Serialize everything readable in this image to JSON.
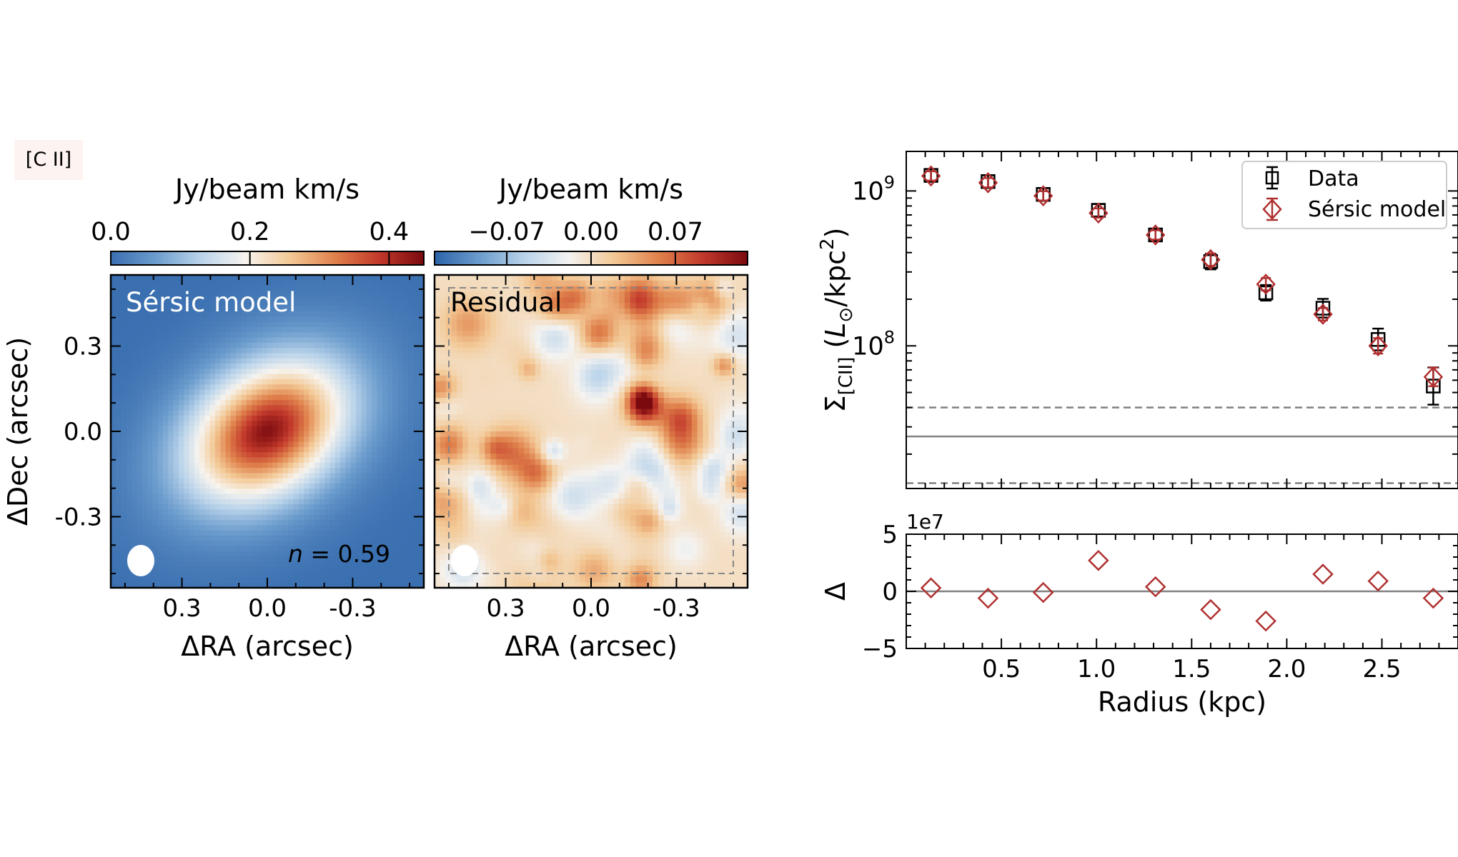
{
  "tag": "[C II]",
  "chart_data": [
    {
      "type": "heatmap",
      "panel_label": "Sérsic model",
      "annotation": "n = 0.59",
      "annotation_var": "n",
      "annotation_rest": " = 0.59",
      "colorbar": {
        "label": "Jy/beam km/s",
        "ticks": [
          {
            "value": 0.0,
            "label": "0.0"
          },
          {
            "value": 0.2,
            "label": "0.2"
          },
          {
            "value": 0.4,
            "label": "0.4"
          }
        ],
        "range": [
          0.0,
          0.45
        ],
        "colormap": [
          "#3a6fb0",
          "#6b9ccd",
          "#b9d3ea",
          "#f7f4ef",
          "#f3c996",
          "#e0824c",
          "#c2392b",
          "#7a0a0f"
        ]
      },
      "xlabel": "ΔRA (arcsec)",
      "ylabel": "ΔDec (arcsec)",
      "x_ticks": [
        {
          "value": 0.3,
          "label": "0.3"
        },
        {
          "value": 0.0,
          "label": "0.0"
        },
        {
          "value": -0.3,
          "label": "-0.3"
        }
      ],
      "y_ticks": [
        {
          "value": 0.3,
          "label": "0.3"
        },
        {
          "value": 0.0,
          "label": "0.0"
        },
        {
          "value": -0.3,
          "label": "-0.3"
        }
      ],
      "xlim": [
        0.55,
        -0.55
      ],
      "ylim": [
        -0.55,
        0.55
      ],
      "model": {
        "peak": 0.44,
        "center": [
          0.0,
          0.0
        ],
        "semi_major": 0.24,
        "semi_minor": 0.17,
        "pa_deg": 35,
        "sersic_n": 0.59
      }
    },
    {
      "type": "heatmap",
      "panel_label": "Residual",
      "colorbar": {
        "label": "Jy/beam km/s",
        "ticks": [
          {
            "value": -0.07,
            "label": "−0.07"
          },
          {
            "value": 0.0,
            "label": "0.00"
          },
          {
            "value": 0.07,
            "label": "0.07"
          }
        ],
        "range": [
          -0.13,
          0.13
        ],
        "colormap": [
          "#2c64a8",
          "#6b9ccd",
          "#b9d3ea",
          "#f4f3f1",
          "#f3c996",
          "#e0824c",
          "#c2392b",
          "#7a0a0f"
        ]
      },
      "xlabel": "ΔRA (arcsec)",
      "x_ticks": [
        {
          "value": 0.3,
          "label": "0.3"
        },
        {
          "value": 0.0,
          "label": "0.0"
        },
        {
          "value": -0.3,
          "label": "-0.3"
        }
      ],
      "xlim": [
        0.55,
        -0.55
      ],
      "ylim": [
        -0.55,
        0.55
      ]
    },
    {
      "type": "scatter",
      "y_scale": "log",
      "ylabel": "Σ[CII] (L⊙/kpc²)",
      "ylabel_main": "Σ",
      "ylabel_sub": "[CII]",
      "ylabel_paren_open": " (",
      "ylabel_L": "L",
      "ylabel_Lsub": "⊙",
      "ylabel_unit": "/kpc",
      "ylabel_sup": "2",
      "ylabel_paren_close": ")",
      "ylim": [
        12000000,
        1800000000
      ],
      "y_ticks": [
        {
          "value": 1000000000,
          "base": "10",
          "exp": "9"
        },
        {
          "value": 100000000,
          "base": "10",
          "exp": "8"
        }
      ],
      "xlim": [
        0.0,
        2.9
      ],
      "legend": "top-right",
      "series": [
        {
          "name": "Data",
          "marker": "square",
          "color": "#000000",
          "x": [
            0.13,
            0.43,
            0.72,
            1.01,
            1.31,
            1.6,
            1.89,
            2.19,
            2.48,
            2.77
          ],
          "y": [
            1260000000,
            1150000000,
            950000000,
            750000000,
            520000000,
            350000000,
            220000000,
            175000000,
            110000000,
            55000000
          ],
          "yerr": [
            0.04,
            0.04,
            0.04,
            0.04,
            0.04,
            0.05,
            0.05,
            0.06,
            0.07,
            0.12
          ]
        },
        {
          "name": "Sérsic model",
          "marker": "diamond",
          "color": "#b03030",
          "x": [
            0.13,
            0.43,
            0.72,
            1.01,
            1.31,
            1.6,
            1.89,
            2.19,
            2.48,
            2.77
          ],
          "y": [
            1250000000,
            1130000000,
            930000000,
            720000000,
            520000000,
            360000000,
            250000000,
            160000000,
            100000000,
            63000000
          ],
          "yerr": [
            0.03,
            0.03,
            0.03,
            0.03,
            0.03,
            0.04,
            0.04,
            0.04,
            0.05,
            0.06
          ]
        }
      ],
      "hlines": [
        {
          "y": 40000000,
          "style": "dashed"
        },
        {
          "y": 26000000,
          "style": "solid"
        },
        {
          "y": 13000000,
          "style": "dashed"
        }
      ]
    },
    {
      "type": "scatter",
      "ylabel": "Δ",
      "offset_text": "1e7",
      "xlabel": "Radius (kpc)",
      "xlim": [
        0.0,
        2.9
      ],
      "ylim": [
        -5,
        5
      ],
      "x_ticks": [
        {
          "value": 0.5,
          "label": "0.5"
        },
        {
          "value": 1.0,
          "label": "1.0"
        },
        {
          "value": 1.5,
          "label": "1.5"
        },
        {
          "value": 2.0,
          "label": "2.0"
        },
        {
          "value": 2.5,
          "label": "2.5"
        }
      ],
      "y_ticks": [
        {
          "value": 5,
          "label": "5"
        },
        {
          "value": 0,
          "label": "0"
        },
        {
          "value": -5,
          "label": "−5"
        }
      ],
      "hlines": [
        {
          "y": 0,
          "style": "solid"
        }
      ],
      "series": [
        {
          "name": "",
          "marker": "diamond",
          "color": "#b03030",
          "x": [
            0.13,
            0.43,
            0.72,
            1.01,
            1.31,
            1.6,
            1.89,
            2.19,
            2.48,
            2.77
          ],
          "y": [
            0.3,
            -0.6,
            -0.1,
            2.7,
            0.4,
            -1.6,
            -2.6,
            1.5,
            0.9,
            -0.6
          ]
        }
      ]
    }
  ]
}
